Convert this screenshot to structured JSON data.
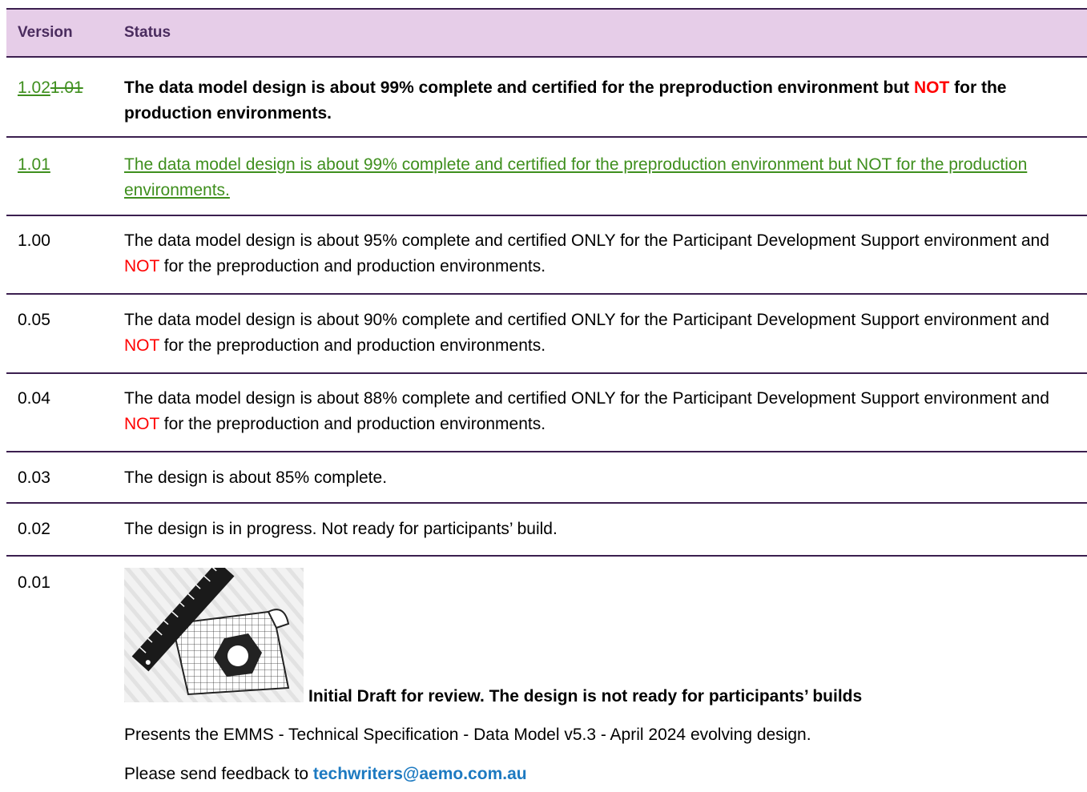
{
  "table": {
    "header": [
      "Version",
      "Status"
    ],
    "rows": [
      {
        "version": [
          "1.02",
          "1.01"
        ],
        "status": [
          "The data model design is about 99% complete and certified for the preproduction environment but ",
          "NOT",
          " for the production environments."
        ]
      },
      {
        "version": [
          "1.01"
        ],
        "status": [
          "The data model design is about 99% complete and certified for the preproduction environment but NOT for the production environments."
        ]
      },
      {
        "version": [
          "1.00"
        ],
        "status": [
          "The data model design is about 95% complete and certified ONLY for the Participant Development Support environment and ",
          "NOT",
          " for the preproduction and production environments."
        ]
      },
      {
        "version": [
          "0.05"
        ],
        "status": [
          "The data model design is about 90% complete and certified ONLY for the Participant Development Support environment and ",
          "NOT",
          " for the preproduction and production environments."
        ]
      },
      {
        "version": [
          "0.04"
        ],
        "status": [
          "The data model design is about 88% complete and certified ONLY for the Participant Development Support environment and ",
          "NOT",
          " for the preproduction and production environments."
        ]
      },
      {
        "version": [
          "0.03"
        ],
        "status": [
          "The design is about 85% complete."
        ]
      },
      {
        "version": [
          "0.02"
        ],
        "status": [
          "The design is in progress. Not ready for participants’ build."
        ]
      },
      {
        "version": [
          "0.01"
        ],
        "status": {
          "caption": "Initial Draft for review. The design is not ready for participants’ builds",
          "description": "Presents the EMMS - Technical Specification - Data Model v5.3 - April 2024 evolving design.",
          "feedback": [
            "Please send feedback to ",
            "techwriters@aemo.com.au"
          ]
        }
      }
    ]
  }
}
